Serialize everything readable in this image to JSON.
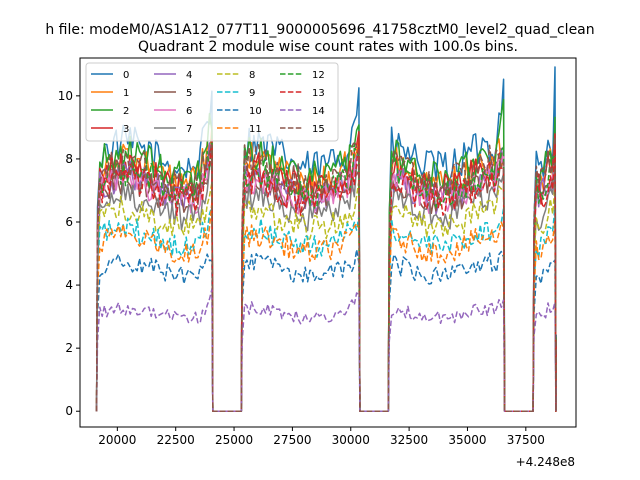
{
  "figure": {
    "suptitle": "h file: modeM0/AS1A12_077T11_9000005696_41758cztM0_level2_quad_clean"
  },
  "chart_data": {
    "type": "line",
    "title": "Quadrant 2 module wise count rates with 100.0s bins.",
    "xlabel": "",
    "ylabel": "",
    "x_offset_label": "+4.248e8",
    "xlim": [
      18400,
      39650
    ],
    "ylim": [
      -0.5,
      11.2
    ],
    "x_ticks": [
      20000,
      22500,
      25000,
      27500,
      30000,
      32500,
      35000,
      37500
    ],
    "x_tick_labels": [
      "20000",
      "22500",
      "25000",
      "27500",
      "30000",
      "32500",
      "35000",
      "37500"
    ],
    "y_ticks": [
      0,
      2,
      4,
      6,
      8,
      10
    ],
    "y_tick_labels": [
      "0",
      "2",
      "4",
      "6",
      "8",
      "10"
    ],
    "grid": false,
    "legend_position": "upper-left",
    "legend_columns": 4,
    "bin_width_s": 100,
    "segments": [
      {
        "start": 19150,
        "end": 24050
      },
      {
        "start": 25350,
        "end": 30350
      },
      {
        "start": 31650,
        "end": 36550
      },
      {
        "start": 37850,
        "end": 38750
      }
    ],
    "series": [
      {
        "name": "0",
        "color": "#1f77b4",
        "dash": "solid",
        "level": 8.1,
        "edge_peak": 10.6
      },
      {
        "name": "1",
        "color": "#ff7f0e",
        "dash": "solid",
        "level": 7.6,
        "edge_peak": 8.9
      },
      {
        "name": "2",
        "color": "#2ca02c",
        "dash": "solid",
        "level": 7.8,
        "edge_peak": 9.7
      },
      {
        "name": "3",
        "color": "#d62728",
        "dash": "solid",
        "level": 7.4,
        "edge_peak": 8.7
      },
      {
        "name": "4",
        "color": "#9467bd",
        "dash": "solid",
        "level": 7.1,
        "edge_peak": 8.6
      },
      {
        "name": "5",
        "color": "#8c564b",
        "dash": "solid",
        "level": 7.0,
        "edge_peak": 8.5
      },
      {
        "name": "6",
        "color": "#e377c2",
        "dash": "solid",
        "level": 7.0,
        "edge_peak": 8.4
      },
      {
        "name": "7",
        "color": "#7f7f7f",
        "dash": "solid",
        "level": 6.5,
        "edge_peak": 8.0
      },
      {
        "name": "8",
        "color": "#bcbd22",
        "dash": "dashed",
        "level": 6.1,
        "edge_peak": 7.2
      },
      {
        "name": "9",
        "color": "#17becf",
        "dash": "dashed",
        "level": 5.5,
        "edge_peak": 6.4
      },
      {
        "name": "10",
        "color": "#1f77b4",
        "dash": "dashed",
        "level": 4.5,
        "edge_peak": 5.2
      },
      {
        "name": "11",
        "color": "#ff7f0e",
        "dash": "dashed",
        "level": 5.3,
        "edge_peak": 6.3
      },
      {
        "name": "12",
        "color": "#2ca02c",
        "dash": "dashed",
        "level": 7.3,
        "edge_peak": 8.5
      },
      {
        "name": "13",
        "color": "#d62728",
        "dash": "dashed",
        "level": 7.0,
        "edge_peak": 8.2
      },
      {
        "name": "14",
        "color": "#9467bd",
        "dash": "dashed",
        "level": 3.1,
        "edge_peak": 3.8
      },
      {
        "name": "15",
        "color": "#8c564b",
        "dash": "dashed",
        "level": 7.6,
        "edge_peak": 8.6
      }
    ]
  }
}
